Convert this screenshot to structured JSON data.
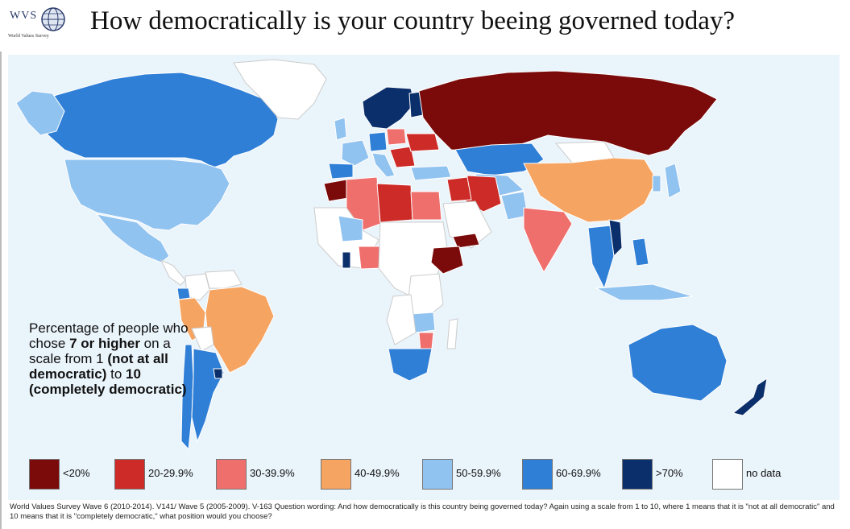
{
  "header": {
    "logo_text": "WVS",
    "logo_subtitle": "World Values Survey",
    "title": "How democratically is your country beeing governed today?"
  },
  "caption": {
    "part1": "Percentage of people who chose ",
    "bold1": "7 or higher",
    "part2": " on a scale from 1 ",
    "bold2": "(not at all democratic)",
    "part3": " to ",
    "bold3": "10 (completely democratic)"
  },
  "colors": {
    "ocean": "#eaf4fb",
    "no_data": "#ffffff",
    "lt20": "#7b0a0a",
    "p20": "#cc2b27",
    "p30": "#ef6f6c",
    "p40": "#f5a462",
    "p50": "#91c3f0",
    "p60": "#2f7fd6",
    "gt70": "#0b2f6b"
  },
  "legend": [
    {
      "label": "<20%",
      "color": "#7b0a0a"
    },
    {
      "label": "20-29.9%",
      "color": "#cc2b27"
    },
    {
      "label": "30-39.9%",
      "color": "#ef6f6c"
    },
    {
      "label": "40-49.9%",
      "color": "#f5a462"
    },
    {
      "label": "50-59.9%",
      "color": "#91c3f0"
    },
    {
      "label": "60-69.9%",
      "color": "#2f7fd6"
    },
    {
      "label": ">70%",
      "color": "#0b2f6b"
    },
    {
      "label": "no data",
      "color": "#ffffff"
    }
  ],
  "footnote": "World Values Survey Wave 6 (2010-2014). V141/ Wave 5 (2005-2009). V-163 Question wording: And how democratically is this country being governed today? Again using a scale from 1 to 10, where 1 means that it is \"not at all democratic\" and 10 means that it is \"completely democratic,\" what position would you choose?"
}
